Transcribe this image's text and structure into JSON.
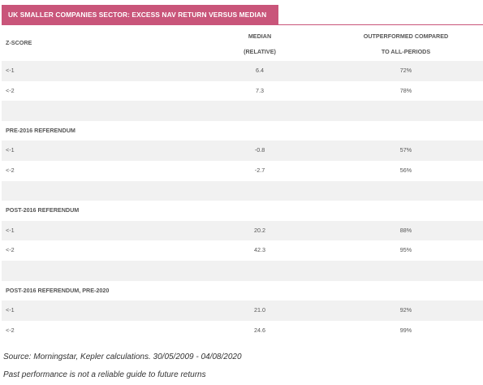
{
  "title": "UK SMALLER COMPANIES SECTOR: EXCESS NAV RETURN VERSUS MEDIAN",
  "colors": {
    "banner": "#c9557a",
    "row_shade": "#f1f1f1"
  },
  "header": {
    "col1": "Z-SCORE",
    "col2_line1": "MEDIAN",
    "col2_line2": "(RELATIVE)",
    "col3_line1": "OUTPERFORMED COMPARED",
    "col3_line2": "TO ALL-PERIODS"
  },
  "groups": [
    {
      "rows": [
        {
          "z": "<-1",
          "median": "6.4",
          "pct": "72%"
        },
        {
          "z": "<-2",
          "median": "7.3",
          "pct": "78%"
        }
      ]
    },
    {
      "label": "PRE-2016 REFERENDUM",
      "rows": [
        {
          "z": "<-1",
          "median": "-0.8",
          "pct": "57%"
        },
        {
          "z": "<-2",
          "median": "-2.7",
          "pct": "56%"
        }
      ]
    },
    {
      "label": "POST-2016 REFERENDUM",
      "rows": [
        {
          "z": "<-1",
          "median": "20.2",
          "pct": "88%"
        },
        {
          "z": "<-2",
          "median": "42.3",
          "pct": "95%"
        }
      ]
    },
    {
      "label": "POST-2016 REFERENDUM, PRE-2020",
      "rows": [
        {
          "z": "<-1",
          "median": "21.0",
          "pct": "92%"
        },
        {
          "z": "<-2",
          "median": "24.6",
          "pct": "99%"
        }
      ]
    }
  ],
  "source": "Source: Morningstar, Kepler calculations. 30/05/2009 - 04/08/2020",
  "disclaimer": "Past performance is not a reliable guide to future returns"
}
